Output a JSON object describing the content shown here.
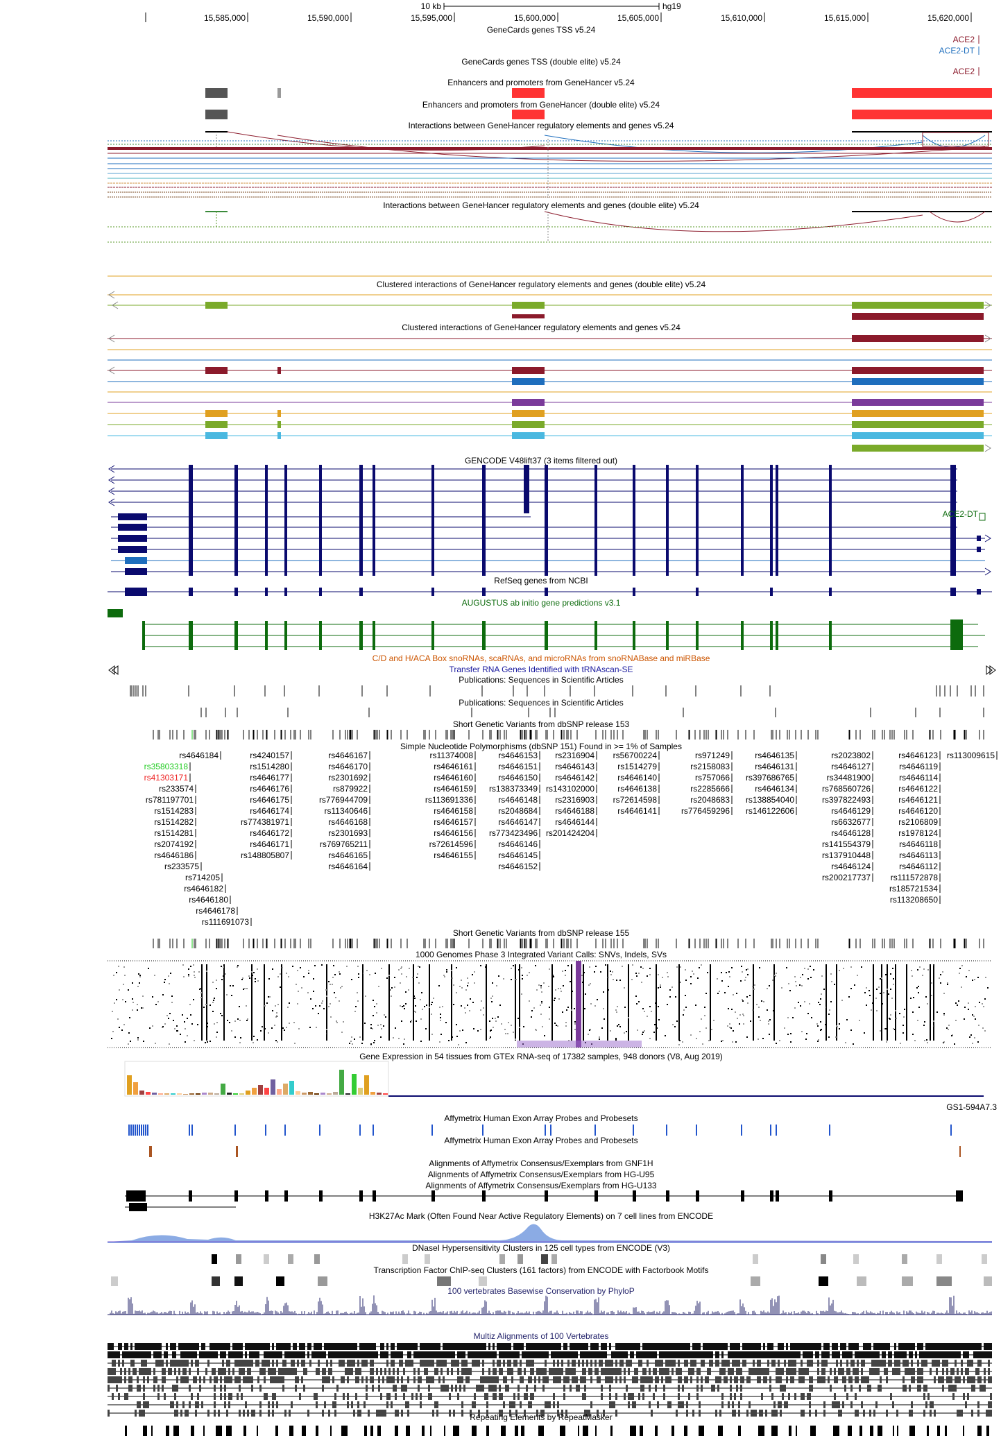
{
  "ruler": {
    "scale_label": "10 kb",
    "assembly": "hg19",
    "positions": [
      "15,585,000",
      "15,590,000",
      "15,595,000",
      "15,600,000",
      "15,605,000",
      "15,610,000",
      "15,615,000",
      "15,620,000"
    ]
  },
  "tracks": {
    "genecards_tss": "GeneCards genes TSS v5.24",
    "genecards_tss_double": "GeneCards genes TSS (double elite) v5.24",
    "enhancers": "Enhancers and promoters from GeneHancer v5.24",
    "enhancers_double": "Enhancers and promoters from GeneHancer (double elite) v5.24",
    "interactions": "Interactions between GeneHancer regulatory elements and genes v5.24",
    "interactions_double": "Interactions between GeneHancer regulatory elements and genes (double elite) v5.24",
    "clustered_double": "Clustered interactions of GeneHancer regulatory elements and genes (double elite) v5.24",
    "clustered": "Clustered interactions of GeneHancer regulatory elements and genes v5.24",
    "gencode": "GENCODE V48lift37 (3 items filtered out)",
    "refseq": "RefSeq genes from NCBI",
    "augustus": "AUGUSTUS ab initio gene predictions v3.1",
    "snorna": "C/D and H/ACA Box snoRNAs, scaRNAs, and microRNAs from snoRNABase and miRBase",
    "trna": "Transfer RNA Genes Identified with tRNAscan-SE",
    "pubs1": "Publications: Sequences in Scientific Articles",
    "pubs2": "Publications: Sequences in Scientific Articles",
    "dbsnp153": "Short Genetic Variants from dbSNP release 153",
    "snp151": "Simple Nucleotide Polymorphisms (dbSNP 151) Found in >= 1% of Samples",
    "dbsnp155": "Short Genetic Variants from dbSNP release 155",
    "kg1000": "1000 Genomes Phase 3 Integrated Variant Calls: SNVs, Indels, SVs",
    "gtex": "Gene Expression in 54 tissues from GTEx RNA-seq of 17382 samples, 948 donors (V8, Aug 2019)",
    "affy_exon1": "Affymetrix Human Exon Array Probes and Probesets",
    "affy_exon2": "Affymetrix Human Exon Array Probes and Probesets",
    "affy_gnf1h": "Alignments of Affymetrix Consensus/Exemplars from GNF1H",
    "affy_u95": "Alignments of Affymetrix Consensus/Exemplars from HG-U95",
    "affy_u133": "Alignments of Affymetrix Consensus/Exemplars from HG-U133",
    "h3k27ac": "H3K27Ac Mark (Often Found Near Active Regulatory Elements) on 7 cell lines from ENCODE",
    "dnase": "DNaseI Hypersensitivity Clusters in 125 cell types from ENCODE (V3)",
    "tfbs": "Transcription Factor ChIP-seq Clusters (161 factors) from ENCODE with Factorbook Motifs",
    "phylop": "100 vertebrates Basewise Conservation by PhyloP",
    "multiz": "Multiz Alignments of 100 Vertebrates",
    "rmsk": "Repeating Elements by RepeatMasker"
  },
  "gene_labels": {
    "ace2_a": "ACE2",
    "ace2_dt": "ACE2-DT",
    "ace2_b": "ACE2",
    "ace2_gencode": "ACE2-DT",
    "gs1": "GS1-594A7.3"
  },
  "snps": {
    "col1": [
      "rs4646184",
      "rs35803318",
      "rs41303171",
      "rs233574",
      "rs781197701",
      "rs1514283",
      "rs1514282",
      "rs1514281",
      "rs2074192",
      "rs4646186",
      "rs233575",
      "rs714205",
      "rs4646182",
      "rs4646180",
      "rs4646178",
      "rs111691073"
    ],
    "col2": [
      "rs4240157",
      "rs1514280",
      "rs4646177",
      "rs4646176",
      "rs4646175",
      "rs4646174",
      "rs774381971",
      "rs4646172",
      "rs4646171",
      "rs148805807"
    ],
    "col3": [
      "rs4646167",
      "rs4646170",
      "rs2301692",
      "rs879922",
      "rs776944709",
      "rs11340646",
      "rs4646168",
      "rs2301693",
      "rs769765211",
      "rs4646165",
      "rs4646164"
    ],
    "col4": [
      "rs11374008",
      "rs4646161",
      "rs4646160",
      "rs4646159",
      "rs113691336",
      "rs4646158",
      "rs4646157",
      "rs4646156",
      "rs72614596",
      "rs4646155"
    ],
    "col5": [
      "rs4646153",
      "rs4646151",
      "rs4646150",
      "rs138373349",
      "rs4646148",
      "rs2048684",
      "rs4646147",
      "rs773423496",
      "rs4646146",
      "rs4646145",
      "rs4646152"
    ],
    "col6": [
      "rs2316904",
      "rs4646143",
      "rs4646142",
      "rs143102000",
      "rs2316903",
      "rs4646188",
      "rs4646144",
      "rs201424204"
    ],
    "col7": [
      "rs56700224",
      "rs1514279",
      "rs4646140",
      "rs4646138",
      "rs72614598",
      "rs4646141"
    ],
    "col8": [
      "rs971249",
      "rs2158083",
      "rs757066",
      "rs2285666",
      "rs2048683",
      "rs776459296"
    ],
    "col9": [
      "rs4646135",
      "rs4646131",
      "rs397686765",
      "rs4646134",
      "rs138854040",
      "rs146122606"
    ],
    "col10": [
      "rs2023802",
      "rs4646127",
      "rs34481900",
      "rs768560726",
      "rs397822493",
      "rs4646129",
      "rs6632677",
      "rs4646128",
      "rs141554379",
      "rs137910448",
      "rs4646124",
      "rs200217737"
    ],
    "col11": [
      "rs4646123",
      "rs4646119",
      "rs4646114",
      "rs4646122",
      "rs4646121",
      "rs4646120",
      "rs2106809",
      "rs1978124",
      "rs4646118",
      "rs4646113",
      "rs4646112",
      "rs111572878",
      "rs185721534",
      "rs113208650"
    ],
    "col12": [
      "rs113009615"
    ]
  },
  "colors": {
    "enhancer_grey": "#555555",
    "enhancer_red": "#ff3333",
    "gencode_navy": "#0a0a6e",
    "augustus_green": "#0d6b0d",
    "ace2_red": "#8b1a2b",
    "ace2dt_blue": "#1e6ebd",
    "phylop_blue": "#24246b",
    "snorna_orange": "#cc5500",
    "trna_blue": "#1a1a9e"
  }
}
